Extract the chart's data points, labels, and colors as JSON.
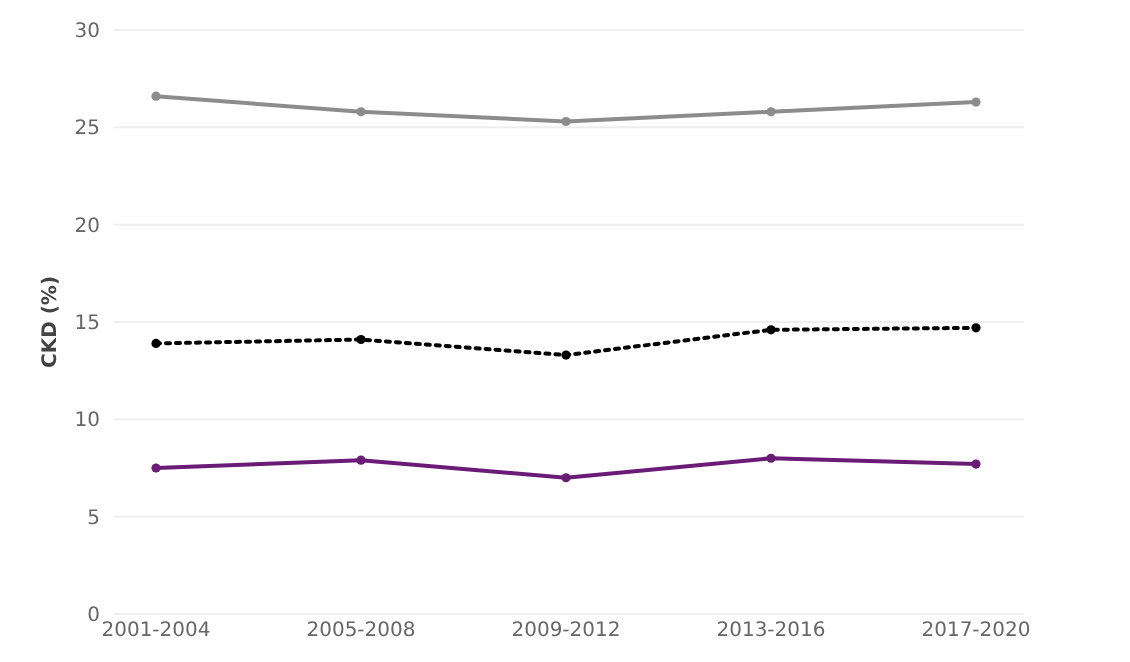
{
  "chart_data": {
    "type": "line",
    "ylabel": "CKD (%)",
    "categories": [
      "2001-2004",
      "2005-2008",
      "2009-2012",
      "2013-2016",
      "2017-2020"
    ],
    "series": [
      {
        "color": "#8c8c8c",
        "values": [
          26.6,
          25.8,
          25.3,
          25.8,
          26.3
        ],
        "line_style": "solid"
      },
      {
        "color": "#000000",
        "values": [
          13.9,
          14.1,
          13.3,
          14.6,
          14.7
        ],
        "line_style": "dotted"
      },
      {
        "color": "#6a1b75",
        "values": [
          7.5,
          7.9,
          7.0,
          8.0,
          7.7
        ],
        "line_style": "solid"
      }
    ],
    "ylim": [
      0,
      30
    ],
    "yticks": [
      0,
      5,
      10,
      15,
      20,
      25,
      30
    ],
    "grid": "y",
    "marker": "circle"
  }
}
